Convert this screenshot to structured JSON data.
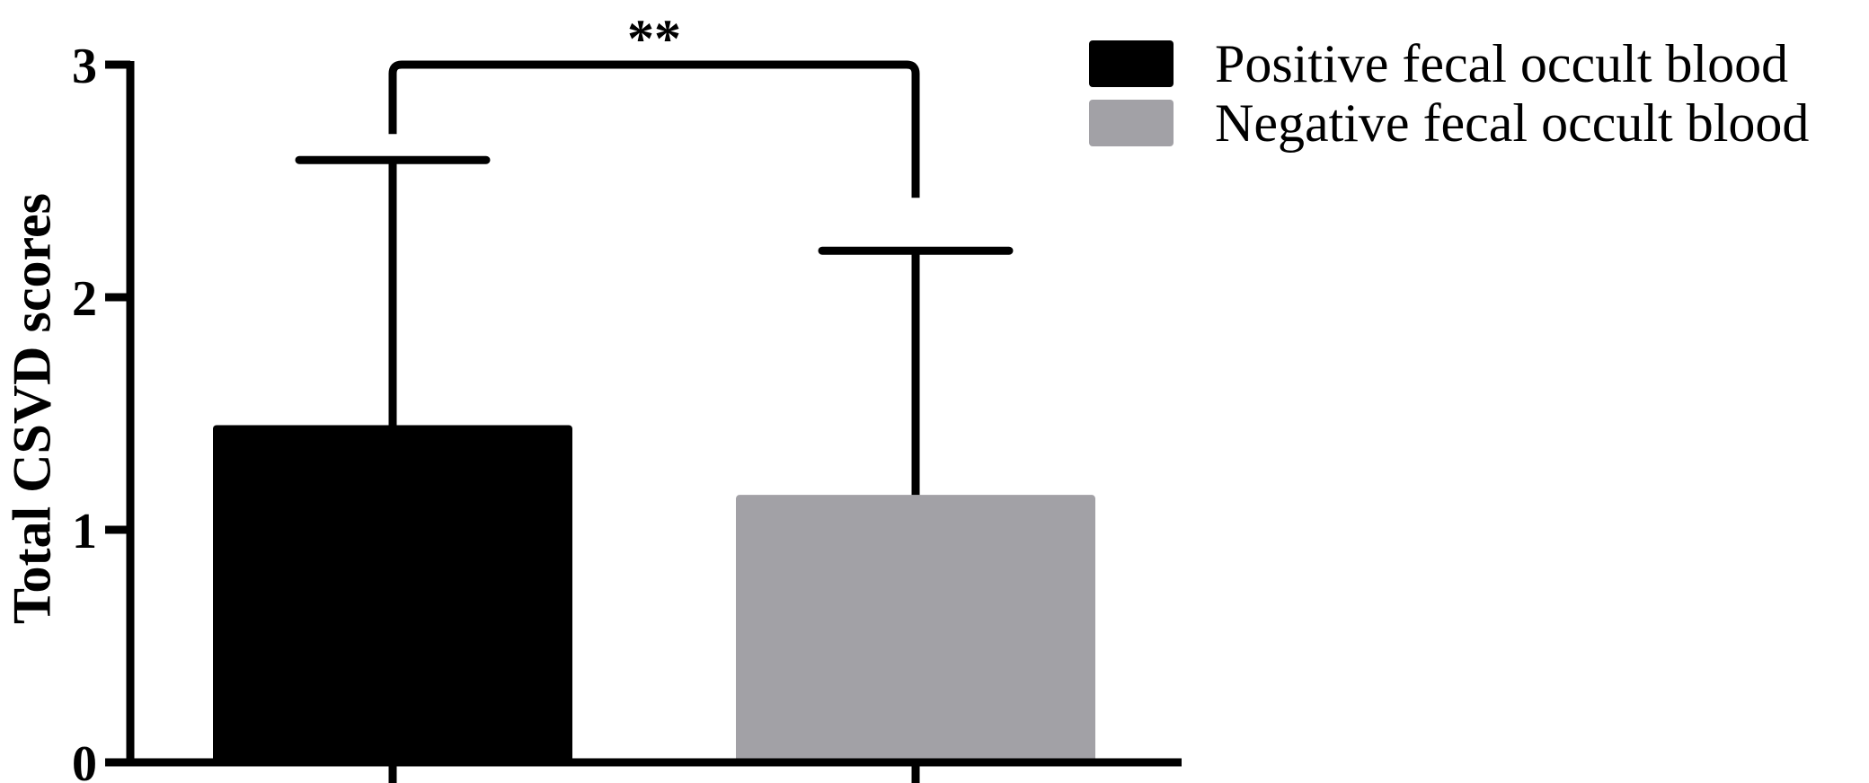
{
  "chart_data": {
    "type": "bar",
    "title": "",
    "xlabel": "",
    "ylabel": "Total CSVD scores",
    "ylim": [
      0,
      3
    ],
    "yticks": [
      0,
      1,
      2,
      3
    ],
    "categories": [
      "",
      ""
    ],
    "series": [
      {
        "name": "Positive fecal occult blood",
        "value": 1.45,
        "error": 1.14,
        "color": "#000000"
      },
      {
        "name": "Negative fecal occult blood",
        "value": 1.15,
        "error": 1.05,
        "color": "#a2a1a6"
      }
    ],
    "significance": {
      "label": "**",
      "between": [
        0,
        1
      ]
    },
    "grid": false,
    "legend": "top-right"
  }
}
